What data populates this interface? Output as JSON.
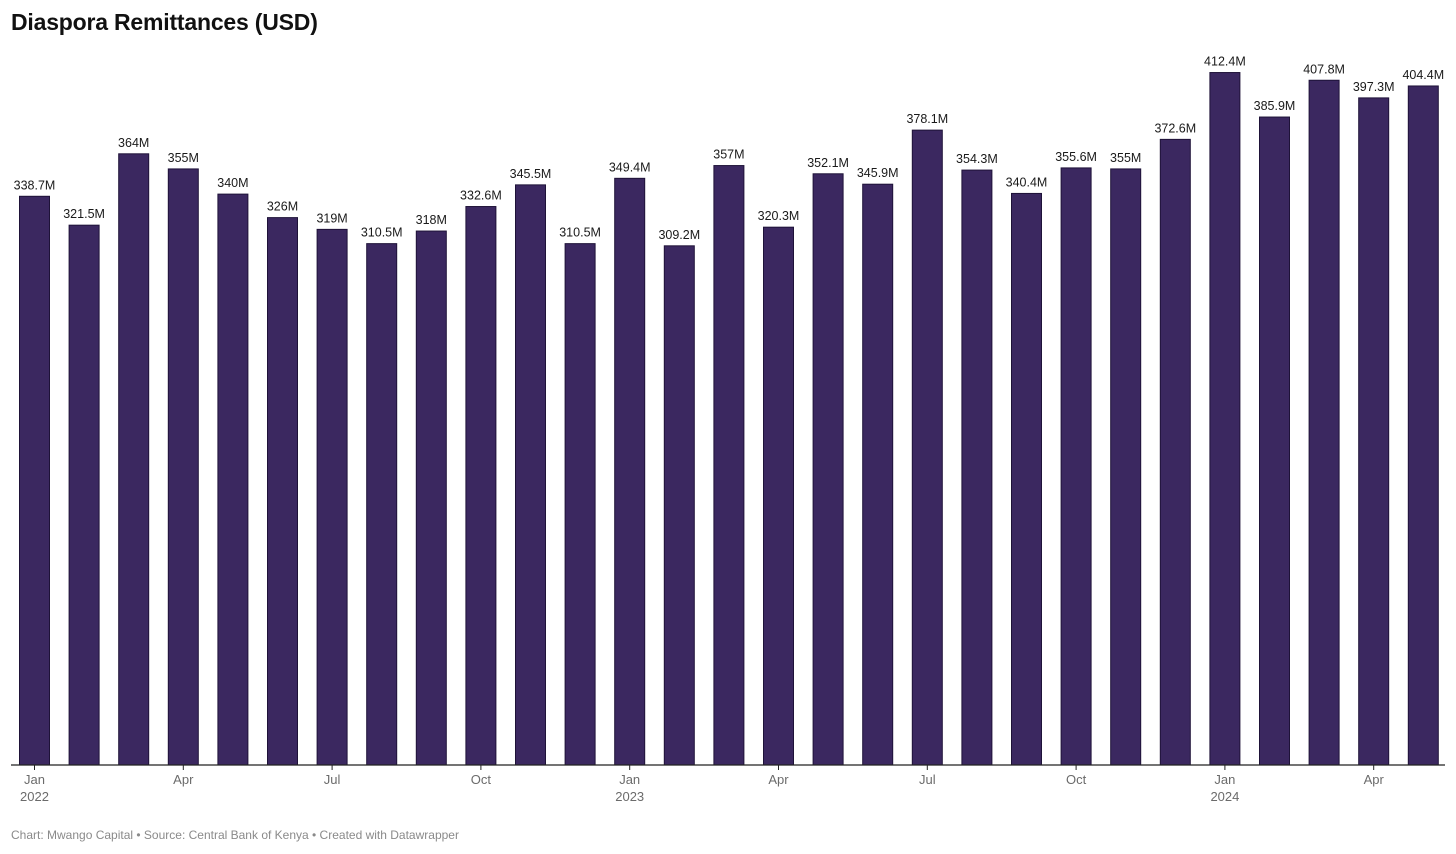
{
  "chart_data": {
    "type": "bar",
    "title": "Diaspora Remittances (USD)",
    "xlabel": "",
    "ylabel": "",
    "ylim": [
      0,
      420
    ],
    "unit": "M",
    "grid": false,
    "bar_color": "#3b2860",
    "categories": [
      "2022-01",
      "2022-02",
      "2022-03",
      "2022-04",
      "2022-05",
      "2022-06",
      "2022-07",
      "2022-08",
      "2022-09",
      "2022-10",
      "2022-11",
      "2022-12",
      "2023-01",
      "2023-02",
      "2023-03",
      "2023-04",
      "2023-05",
      "2023-06",
      "2023-07",
      "2023-08",
      "2023-09",
      "2023-10",
      "2023-11",
      "2023-12",
      "2024-01",
      "2024-02",
      "2024-03",
      "2024-04",
      "2024-05"
    ],
    "values": [
      338.7,
      321.5,
      364,
      355,
      340,
      326,
      319,
      310.5,
      318,
      332.6,
      345.5,
      310.5,
      349.4,
      309.2,
      357,
      320.3,
      352.1,
      345.9,
      378.1,
      354.3,
      340.4,
      355.6,
      355,
      372.6,
      412.4,
      385.9,
      407.8,
      397.3,
      404.4
    ],
    "data_labels": [
      "338.7M",
      "321.5M",
      "364M",
      "355M",
      "340M",
      "326M",
      "319M",
      "310.5M",
      "318M",
      "332.6M",
      "345.5M",
      "310.5M",
      "349.4M",
      "309.2M",
      "357M",
      "320.3M",
      "352.1M",
      "345.9M",
      "378.1M",
      "354.3M",
      "340.4M",
      "355.6M",
      "355M",
      "372.6M",
      "412.4M",
      "385.9M",
      "407.8M",
      "397.3M",
      "404.4M"
    ],
    "x_ticks": [
      {
        "index": 0,
        "label": "Jan",
        "sublabel": "2022"
      },
      {
        "index": 3,
        "label": "Apr",
        "sublabel": ""
      },
      {
        "index": 6,
        "label": "Jul",
        "sublabel": ""
      },
      {
        "index": 9,
        "label": "Oct",
        "sublabel": ""
      },
      {
        "index": 12,
        "label": "Jan",
        "sublabel": "2023"
      },
      {
        "index": 15,
        "label": "Apr",
        "sublabel": ""
      },
      {
        "index": 18,
        "label": "Jul",
        "sublabel": ""
      },
      {
        "index": 21,
        "label": "Oct",
        "sublabel": ""
      },
      {
        "index": 24,
        "label": "Jan",
        "sublabel": "2024"
      },
      {
        "index": 27,
        "label": "Apr",
        "sublabel": ""
      }
    ]
  },
  "footer": {
    "text": "Chart: Mwango Capital • Source: Central Bank of Kenya • Created with Datawrapper"
  }
}
